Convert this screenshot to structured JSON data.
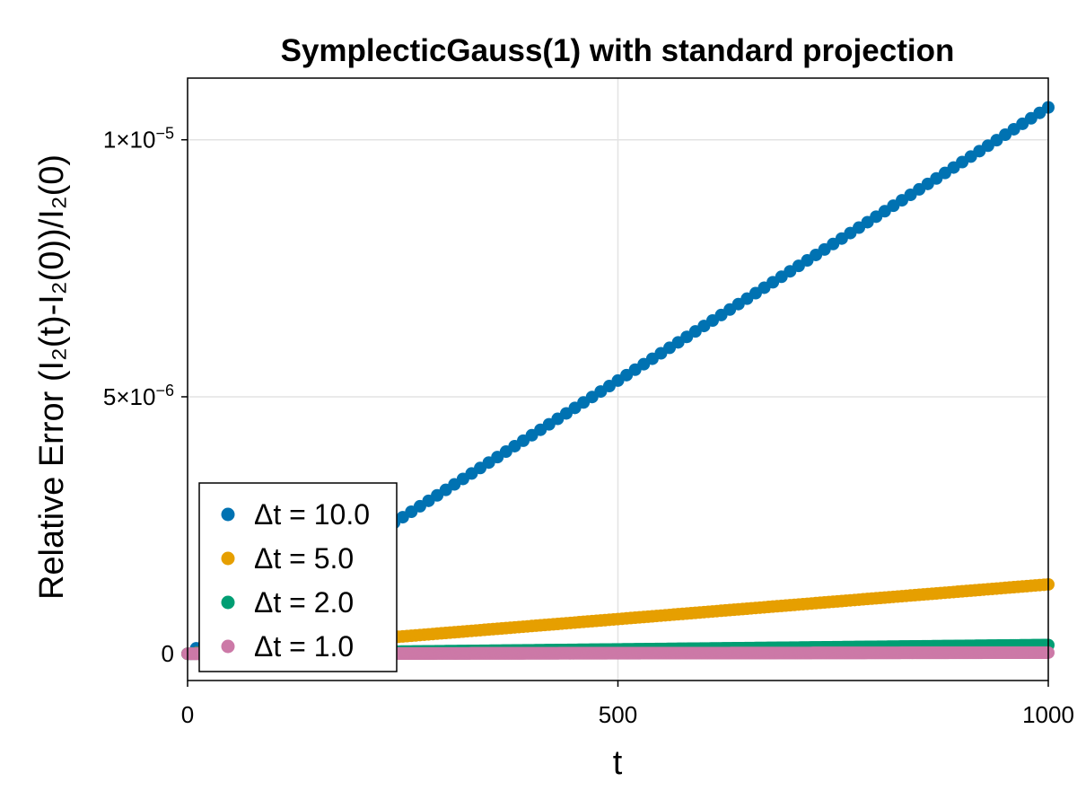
{
  "chart_data": {
    "type": "scatter",
    "title": "SymplecticGauss(1) with standard projection",
    "xlabel": "t",
    "ylabel": "Relative Error (I₂(t)-I₂(0))/I₂(0)",
    "xlim": [
      0,
      1000
    ],
    "ylim": [
      -5.2e-07,
      1.12e-05
    ],
    "x_ticks": [
      {
        "value": 0,
        "label": "0"
      },
      {
        "value": 500,
        "label": "500"
      },
      {
        "value": 1000,
        "label": "1000"
      }
    ],
    "y_ticks": [
      {
        "value": 0,
        "label_base": "0",
        "label_exp": ""
      },
      {
        "value": 5e-06,
        "label_base": "5×10",
        "label_exp": "−6"
      },
      {
        "value": 1e-05,
        "label_base": "1×10",
        "label_exp": "−5"
      }
    ],
    "grid": true,
    "legend_position": "bottom-left",
    "series": [
      {
        "name": "Δt = 10.0",
        "dt": 10.0,
        "color": "#0072b2",
        "slope": 1.063e-08
      },
      {
        "name": "Δt = 5.0",
        "dt": 5.0,
        "color": "#e69f00",
        "slope": 1.35e-09
      },
      {
        "name": "Δt = 2.0",
        "dt": 2.0,
        "color": "#009e73",
        "slope": 1.7e-10
      },
      {
        "name": "Δt = 1.0",
        "dt": 1.0,
        "color": "#cc79a7",
        "slope": 2.2e-11
      }
    ]
  }
}
